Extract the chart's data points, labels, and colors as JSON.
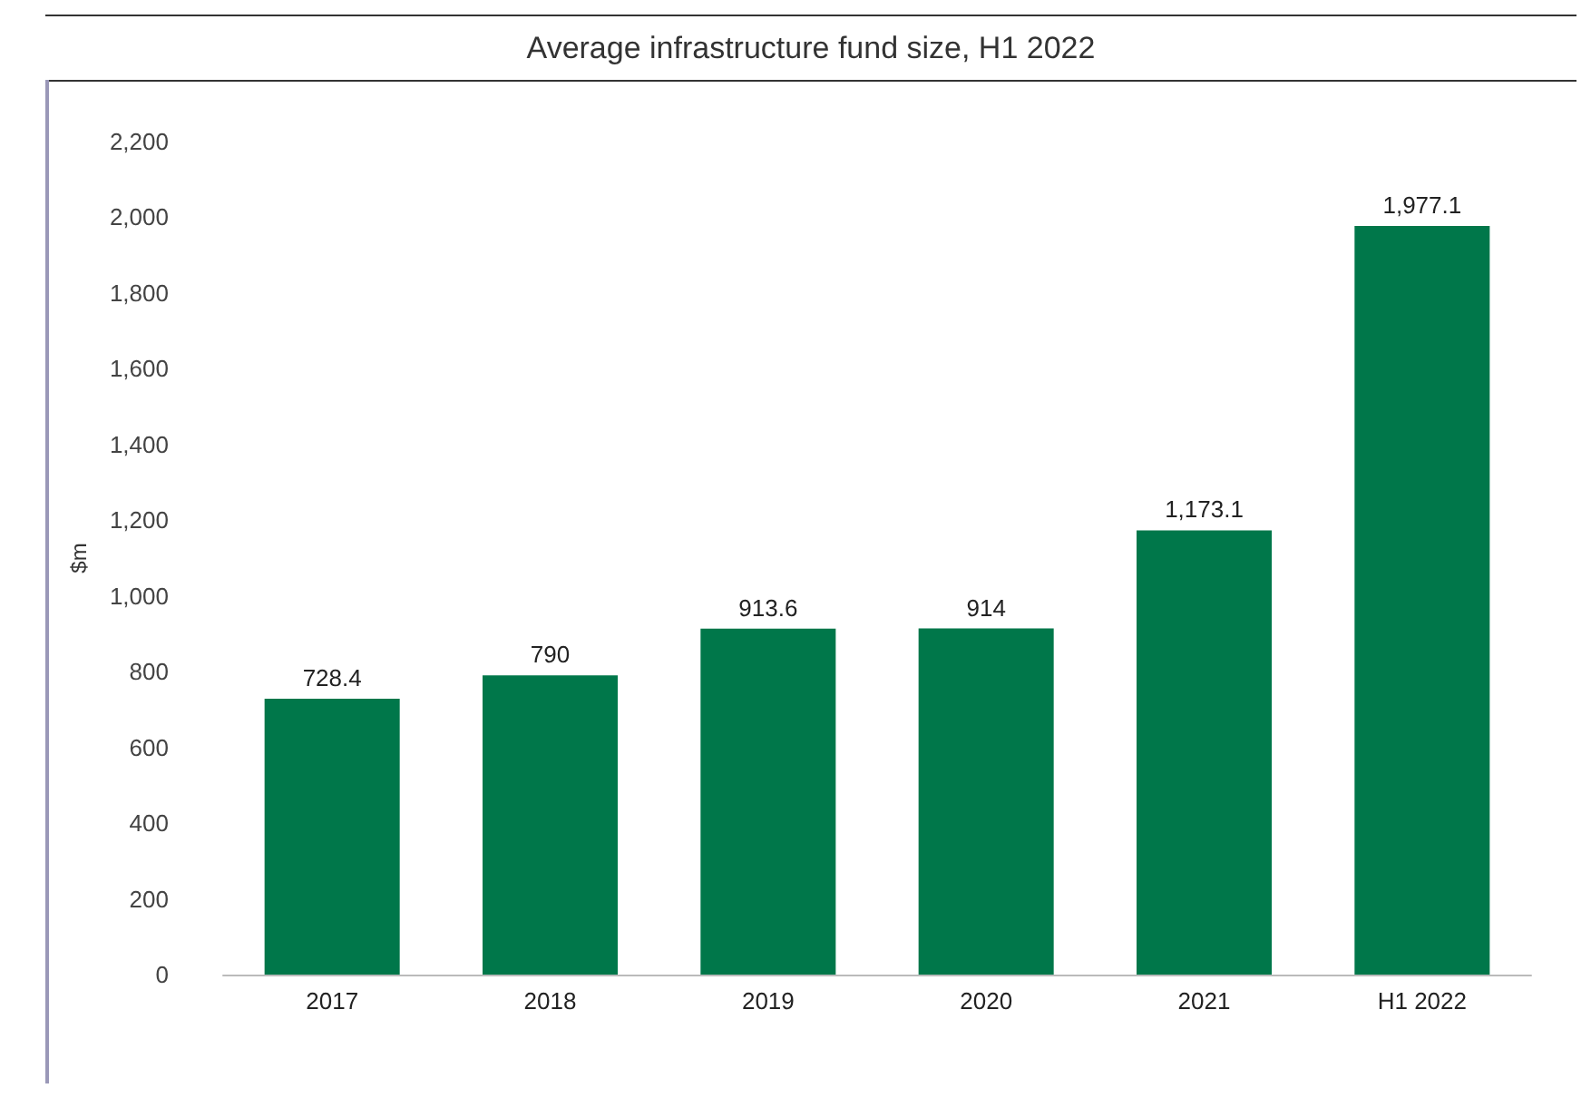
{
  "chart_data": {
    "type": "bar",
    "title": "Average infrastructure fund size, H1 2022",
    "ylabel": "$m",
    "categories": [
      "2017",
      "2018",
      "2019",
      "2020",
      "2021",
      "H1 2022"
    ],
    "values": [
      728.4,
      790,
      913.6,
      914,
      1173.1,
      1977.1
    ],
    "value_labels": [
      "728.4",
      "790",
      "913.6",
      "914",
      "1,173.1",
      "1,977.1"
    ],
    "color": "#00774a",
    "ylim": [
      0,
      2200
    ],
    "yticks": [
      0,
      200,
      400,
      600,
      800,
      {
        "value": 1000,
        "label": "1,000"
      },
      {
        "value": 1200,
        "label": "1,200"
      },
      {
        "value": 1400,
        "label": "1,400"
      },
      {
        "value": 1600,
        "label": "1,600"
      },
      {
        "value": 1800,
        "label": "1,800"
      },
      {
        "value": 2000,
        "label": "2,000"
      },
      {
        "value": 2200,
        "label": "2,200"
      }
    ],
    "grid": false
  }
}
